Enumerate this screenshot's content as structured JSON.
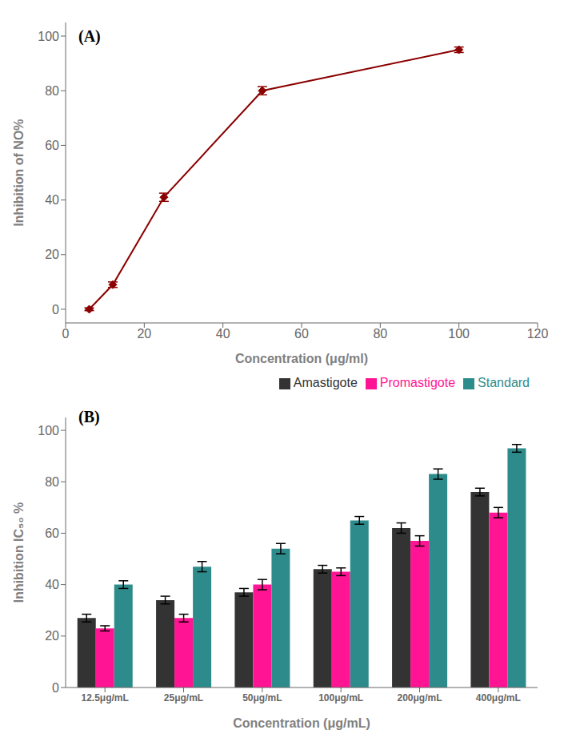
{
  "chart_data": [
    {
      "type": "line",
      "title": "(A)",
      "x": [
        6,
        12,
        25,
        50,
        100
      ],
      "values": [
        0,
        9,
        41,
        80,
        95
      ],
      "errors": [
        0.5,
        1.0,
        1.5,
        1.5,
        1.0
      ],
      "color": "#8B0000",
      "marker": "diamond",
      "xlabel": "Concentration (μg/ml)",
      "ylabel": "Inhibition of NO%",
      "xlim": [
        0,
        120
      ],
      "ylim": [
        -5,
        105
      ],
      "xticks": [
        0,
        20,
        40,
        60,
        80,
        100,
        120
      ],
      "yticks": [
        0,
        20,
        40,
        60,
        80,
        100
      ],
      "grid": false
    },
    {
      "type": "bar",
      "title": "(B)",
      "categories": [
        "12.5μg/mL",
        "25μg/mL",
        "50μg/mL",
        "100μg/mL",
        "200μg/mL",
        "400μg/mL"
      ],
      "series": [
        {
          "name": "Amastigote",
          "color": "#333333",
          "values": [
            27,
            34,
            37,
            46,
            62,
            76
          ],
          "errors": [
            1.5,
            1.5,
            1.5,
            1.5,
            2.0,
            1.5
          ]
        },
        {
          "name": "Promastigote",
          "color": "#FF1493",
          "values": [
            23,
            27,
            40,
            45,
            57,
            68
          ],
          "errors": [
            1.0,
            1.5,
            2.0,
            1.5,
            2.0,
            2.0
          ]
        },
        {
          "name": "Standard",
          "color": "#2E8B8B",
          "values": [
            40,
            47,
            54,
            65,
            83,
            93
          ],
          "errors": [
            1.5,
            2.0,
            2.0,
            1.5,
            2.0,
            1.5
          ]
        }
      ],
      "xlabel": "Concentration (μg/mL)",
      "ylabel": "Inhibition IC₅₀ %",
      "ylim": [
        0,
        105
      ],
      "yticks": [
        0,
        20,
        40,
        60,
        80,
        100
      ],
      "legend": "upper right",
      "grid": false
    }
  ]
}
